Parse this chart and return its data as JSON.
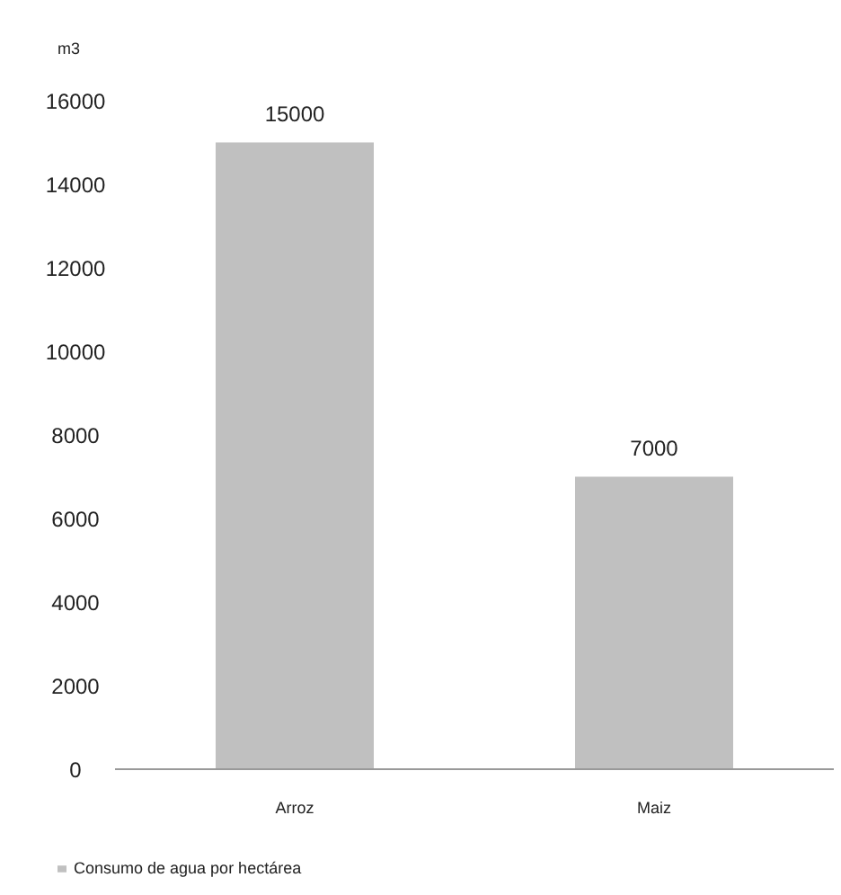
{
  "chart_data": {
    "type": "bar",
    "ylabel": "m3",
    "categories": [
      "Arroz",
      "Maiz"
    ],
    "series": [
      {
        "name": "Consumo de agua por hectárea",
        "color": "#c0c0c0",
        "values": [
          15000,
          7000
        ]
      }
    ],
    "ylim": [
      0,
      16000
    ],
    "yticks": [
      0,
      2000,
      4000,
      6000,
      8000,
      10000,
      12000,
      14000,
      16000
    ],
    "grid": false,
    "legend": "bottom left",
    "data_labels": true
  }
}
